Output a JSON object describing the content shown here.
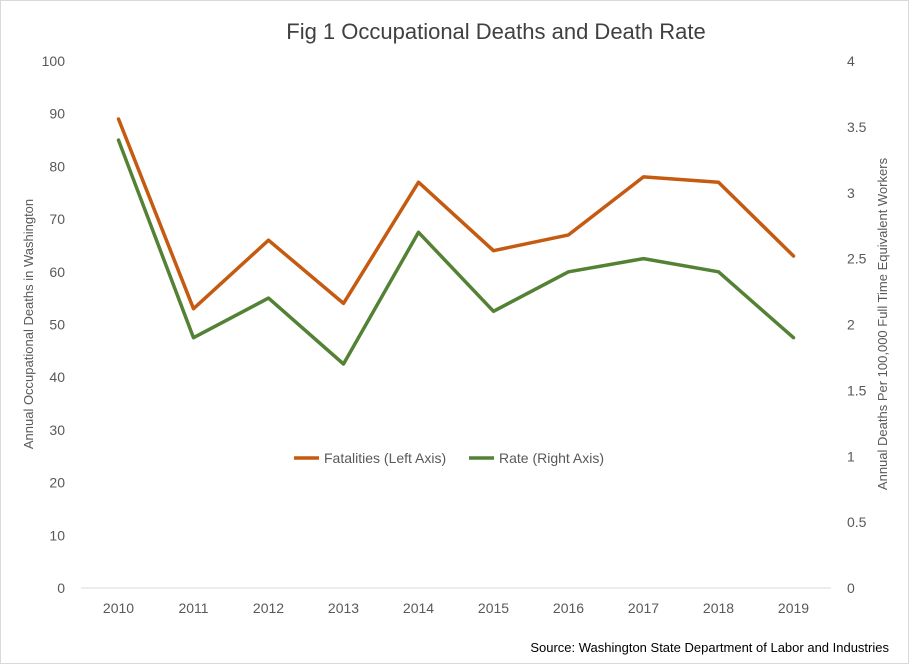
{
  "chart_data": {
    "type": "line",
    "title": "Fig 1 Occupational Deaths and Death Rate",
    "categories": [
      "2010",
      "2011",
      "2012",
      "2013",
      "2014",
      "2015",
      "2016",
      "2017",
      "2018",
      "2019"
    ],
    "y_left": {
      "label": "Annual Occupational Deaths in Washington",
      "lim": [
        0,
        100
      ],
      "ticks": [
        "0",
        "10",
        "20",
        "30",
        "40",
        "50",
        "60",
        "70",
        "80",
        "90",
        "100"
      ]
    },
    "y_right": {
      "label": "Annual Deaths Per 100,000 Full Time Equivalent Workers",
      "lim": [
        0,
        4
      ],
      "ticks": [
        "0",
        "0.5",
        "1",
        "1.5",
        "2",
        "2.5",
        "3",
        "3.5",
        "4"
      ]
    },
    "series": [
      {
        "name": "Fatalities (Left Axis)",
        "axis": "left",
        "color": "#C55A11",
        "values": [
          89,
          53,
          66,
          54,
          77,
          64,
          67,
          78,
          77,
          63
        ]
      },
      {
        "name": "Rate (Right Axis)",
        "axis": "right",
        "color": "#548235",
        "values": [
          3.4,
          1.9,
          2.2,
          1.7,
          2.7,
          2.1,
          2.4,
          2.5,
          2.4,
          1.9
        ]
      }
    ],
    "legend_position": "center",
    "grid": false,
    "source": "Source: Washington State Department of Labor and Industries"
  }
}
